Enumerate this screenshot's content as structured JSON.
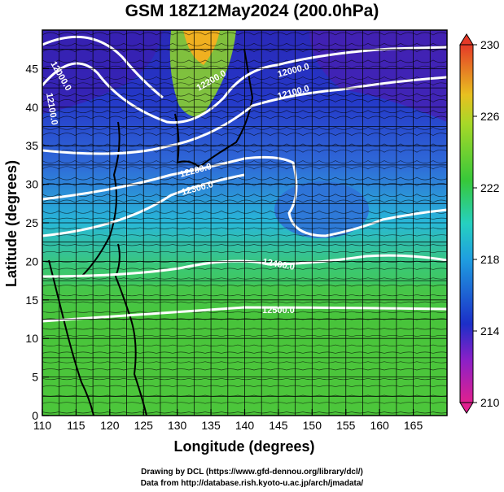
{
  "title": "GSM 18Z12May2024 (200.0hPa)",
  "xlabel": "Longitude (degrees)",
  "ylabel": "Latitude  (degrees)",
  "x_ticks": [
    "110",
    "115",
    "120",
    "125",
    "130",
    "135",
    "140",
    "145",
    "150",
    "155",
    "160",
    "165"
  ],
  "y_ticks": [
    "0",
    "5",
    "10",
    "15",
    "20",
    "25",
    "30",
    "35",
    "40",
    "45"
  ],
  "colorbar": {
    "ticks": [
      "210",
      "214",
      "218",
      "222",
      "226",
      "230"
    ],
    "min": 210,
    "max": 230
  },
  "contour_labels": [
    {
      "text": "12000.0"
    },
    {
      "text": "12000.0"
    },
    {
      "text": "12100.0"
    },
    {
      "text": "12100.0"
    },
    {
      "text": "12200.0"
    },
    {
      "text": "12200.0"
    },
    {
      "text": "12300.0"
    },
    {
      "text": "12400.0"
    },
    {
      "text": "12500.0"
    }
  ],
  "credits": {
    "line1": "Drawing by DCL (https://www.gfd-dennou.org/library/dcl/)",
    "line2": "Data from http://database.rish.kyoto-u.ac.jp/arch/jmadata/"
  },
  "map_extent": {
    "lon": [
      110,
      170
    ],
    "lat": [
      0,
      50
    ]
  },
  "colors": {
    "cb_low": "#e0208f",
    "cb_blue": "#1c2fc8",
    "cb_cyan": "#1fd0e0",
    "cb_green": "#37c83a",
    "cb_yellow": "#e8e020",
    "cb_high": "#e53a28"
  }
}
